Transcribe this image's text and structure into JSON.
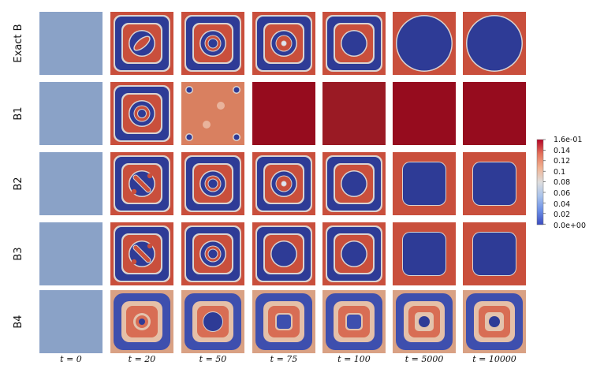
{
  "rows": [
    {
      "id": "exact-b",
      "label": "Exact B",
      "cells": [
        {
          "bg": "#8aa2c7"
        },
        {
          "bg": "#c94f3c",
          "shape": "rounded-square-rings",
          "center": "ellipse-red"
        },
        {
          "bg": "#c94f3c",
          "shape": "rounded-square-rings",
          "center": "ring-dot"
        },
        {
          "bg": "#c94f3c",
          "shape": "rounded-square-rings",
          "center": "ring-small-dot"
        },
        {
          "bg": "#c94f3c",
          "shape": "ring-disk",
          "center": "blue-disk"
        },
        {
          "bg": "#c94f3c",
          "shape": "large-blue-disk"
        },
        {
          "bg": "#c94f3c",
          "shape": "large-blue-disk"
        }
      ]
    },
    {
      "id": "b1",
      "label": "B1",
      "cells": [
        {
          "bg": "#8aa2c7"
        },
        {
          "bg": "#c94f3c",
          "shape": "rounded-square-rings",
          "center": "concentric"
        },
        {
          "bg": "#d98060",
          "shape": "corner-dots"
        },
        {
          "bg": "#960c1e",
          "shape": "solid"
        },
        {
          "bg": "#9a1a24",
          "shape": "solid"
        },
        {
          "bg": "#960c1e",
          "shape": "solid"
        },
        {
          "bg": "#960c1e",
          "shape": "solid"
        }
      ]
    },
    {
      "id": "b2",
      "label": "B2",
      "cells": [
        {
          "bg": "#8aa2c7"
        },
        {
          "bg": "#c94f3c",
          "shape": "rounded-square-rings",
          "center": "diagonal"
        },
        {
          "bg": "#c94f3c",
          "shape": "rounded-square-rings",
          "center": "ring-dot"
        },
        {
          "bg": "#c94f3c",
          "shape": "rounded-square-rings",
          "center": "ring-small-dot"
        },
        {
          "bg": "#c94f3c",
          "shape": "ring-disk",
          "center": "blue-disk"
        },
        {
          "bg": "#c94f3c",
          "shape": "large-blue-square"
        },
        {
          "bg": "#c94f3c",
          "shape": "large-blue-square"
        }
      ]
    },
    {
      "id": "b3",
      "label": "B3",
      "cells": [
        {
          "bg": "#8aa2c7"
        },
        {
          "bg": "#c94f3c",
          "shape": "rounded-square-rings",
          "center": "diagonal"
        },
        {
          "bg": "#c94f3c",
          "shape": "rounded-square-rings",
          "center": "ring-dot"
        },
        {
          "bg": "#c94f3c",
          "shape": "ring-disk",
          "center": "blue-disk"
        },
        {
          "bg": "#c94f3c",
          "shape": "ring-disk",
          "center": "blue-disk"
        },
        {
          "bg": "#c94f3c",
          "shape": "large-blue-square"
        },
        {
          "bg": "#c94f3c",
          "shape": "large-blue-square"
        }
      ]
    },
    {
      "id": "b4",
      "label": "B4",
      "cells": [
        {
          "bg": "#8aa2c7"
        },
        {
          "bg": "#d9a184",
          "shape": "soft-rings",
          "center": "ring-dot"
        },
        {
          "bg": "#d9a184",
          "shape": "soft-rings",
          "center": "blue-disk"
        },
        {
          "bg": "#d9a184",
          "shape": "soft-rings",
          "center": "soft-core"
        },
        {
          "bg": "#d9a184",
          "shape": "soft-rings",
          "center": "soft-core"
        },
        {
          "bg": "#d9a184",
          "shape": "soft-rings",
          "center": "soft-core-dot"
        },
        {
          "bg": "#d9a184",
          "shape": "soft-rings",
          "center": "soft-core-dot"
        }
      ]
    }
  ],
  "columns": [
    "t = 0",
    "t = 20",
    "t = 50",
    "t = 75",
    "t = 100",
    "t = 5000",
    "t = 10000"
  ],
  "colorbar": {
    "ticks": [
      "1.6e-01",
      "0.14",
      "0.12",
      "0.1",
      "0.08",
      "0.06",
      "0.04",
      "0.02",
      "0.0e+00"
    ],
    "stops": [
      "#b40426",
      "#e4725b",
      "#f1b393",
      "#dddddd",
      "#a8c2eb",
      "#6b8ee6",
      "#3b4cc0"
    ]
  },
  "palette": {
    "red": "#c94f3c",
    "blue": "#2e3b96",
    "light": "#d9d3d1",
    "dark_red": "#960c1e"
  }
}
